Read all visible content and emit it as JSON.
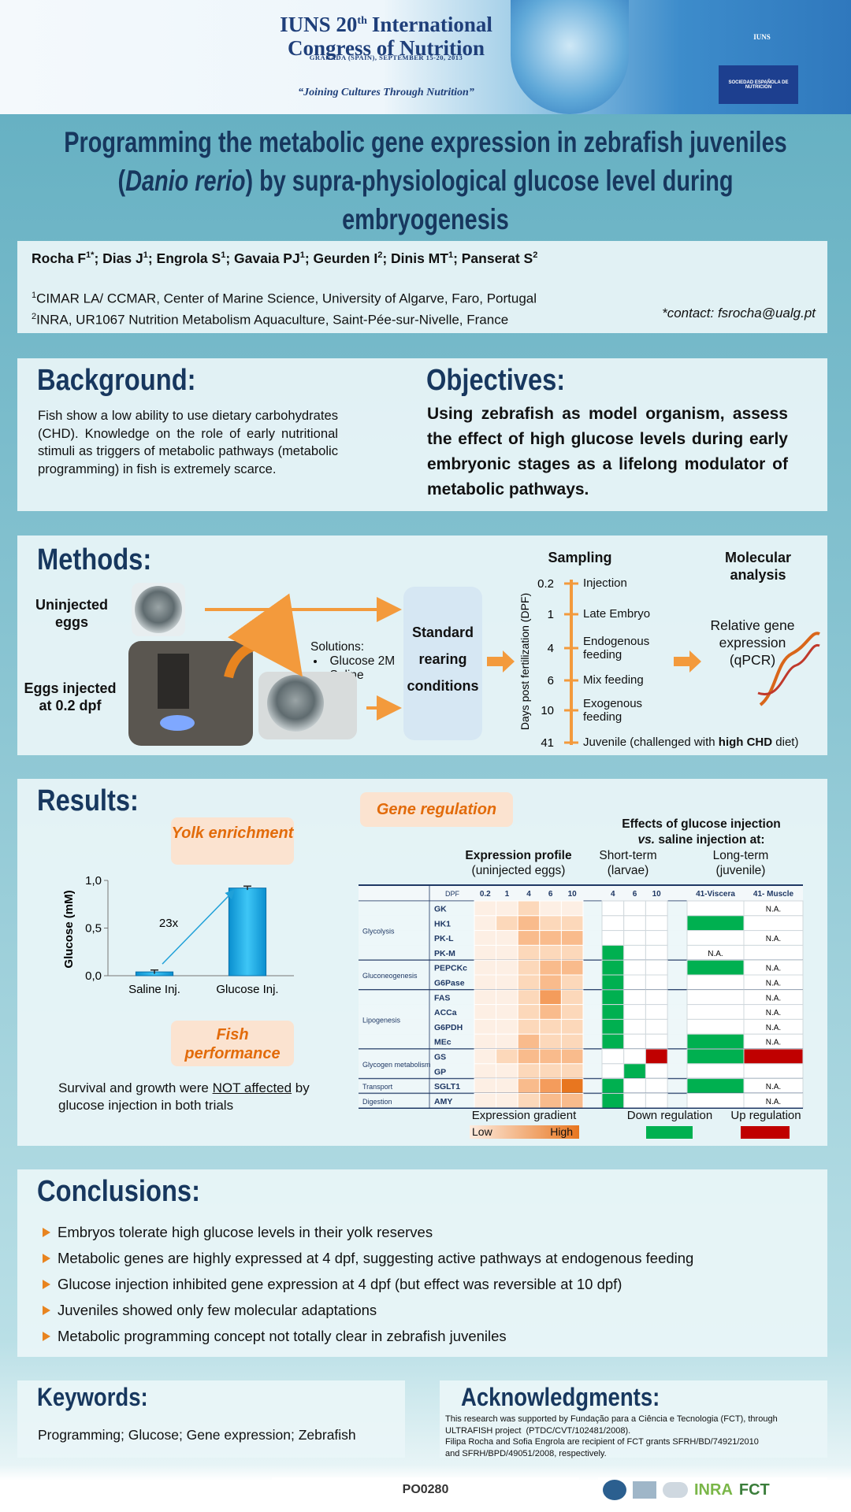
{
  "header": {
    "name_pre": "IUNS 20",
    "name_sup": "th",
    "name_post": "International",
    "name_line2": "Congress of Nutrition",
    "place": "GRANADA (SPAIN), SEPTEMBER 15-20, 2013",
    "motto": "“Joining Cultures Through Nutrition”",
    "logo": "IUNS",
    "sponsor": "SOCIEDAD ESPAÑOLA DE NUTRICIÓN"
  },
  "title": {
    "before": "Programming the metabolic gene expression in zebrafish juveniles (",
    "italic": "Danio rerio",
    "after": ") by supra-physiological glucose level during embryogenesis"
  },
  "authors": [
    {
      "name": "Rocha F",
      "sup": "1*"
    },
    {
      "name": "; Dias J",
      "sup": "1"
    },
    {
      "name": "; Engrola S",
      "sup": "1"
    },
    {
      "name": "; Gavaia PJ",
      "sup": "1"
    },
    {
      "name": "; Geurden I",
      "sup": "2"
    },
    {
      "name": "; Dinis MT",
      "sup": "1"
    },
    {
      "name": "; Panserat S",
      "sup": "2"
    }
  ],
  "affiliations": [
    {
      "sup": "1",
      "text": "CIMAR LA/ CCMAR, Center of Marine Science, University of Algarve, Faro, Portugal"
    },
    {
      "sup": "2",
      "text": "INRA, UR1067 Nutrition Metabolism Aquaculture, Saint-Pée-sur-Nivelle, France"
    }
  ],
  "contact": "*contact: fsrocha@ualg.pt",
  "background": {
    "heading": "Background:",
    "text": "Fish show a low ability to use dietary carbohydrates (CHD). Knowledge on the role of early nutritional stimuli as triggers of metabolic pathways (metabolic programming) in fish is extremely scarce."
  },
  "objectives": {
    "heading": "Objectives:",
    "text": "Using zebrafish as model organism, assess the effect of high glucose levels during early embryonic stages as a lifelong modulator of metabolic pathways."
  },
  "methods": {
    "heading": "Methods:",
    "uninjected": "Uninjected eggs",
    "injected": "Eggs injected at 0.2 dpf",
    "solutions_label": "Solutions:",
    "solutions": [
      "Glucose 2M",
      "Saline"
    ],
    "rearing": "Standard rearing conditions",
    "sampling": "Sampling",
    "axis_label": "Days post fertilization (DPF)",
    "timeline": [
      {
        "dpf": 0.2,
        "event": "Injection"
      },
      {
        "dpf": 1,
        "event": "Late Embryo"
      },
      {
        "dpf": 4,
        "event": "Endogenous feeding"
      },
      {
        "dpf": 6,
        "event": "Mix feeding"
      },
      {
        "dpf": 10,
        "event": "Exogenous feeding"
      },
      {
        "dpf": 41,
        "event": "Juvenile (challenged with ",
        "bold": "high CHD",
        "after": " diet)"
      }
    ],
    "molecular": "Molecular analysis",
    "qpcr": "Relative gene expression (qPCR)"
  },
  "results": {
    "heading": "Results:",
    "yolk": "Yolk enrichment",
    "performance": "Fish performance",
    "survival": {
      "before": "Survival and growth were ",
      "underlined": "NOT affected",
      "after": " by glucose injection in both trials"
    },
    "yolk_chart": {
      "type": "bar",
      "y_label": "Glucose (mM)",
      "categories": [
        "Saline Inj.",
        "Glucose Inj."
      ],
      "values": [
        0.04,
        0.92
      ],
      "errors": [
        0.02,
        0.02
      ],
      "color": "#1fb4ee",
      "ylim": [
        0,
        1
      ],
      "yticks": [
        {
          "value": 0,
          "label": "0,0"
        },
        {
          "value": 0.5,
          "label": "0,5"
        },
        {
          "value": 1,
          "label": "1,0"
        }
      ],
      "annotation": "23x"
    },
    "gene_regulation": {
      "heading": "Gene regulation",
      "effects_line1": "Effects of glucose injection",
      "effects_vs": "vs.",
      "effects_rest": " saline injection at:",
      "profile": "Expression profile",
      "profile_sub": "(uninjected eggs)",
      "short": "Short-term",
      "short_sub": "(larvae)",
      "long": "Long-term",
      "long_sub": "(juvenile)",
      "dpf_label": "DPF",
      "dpf": [
        0.2,
        1,
        4,
        6,
        10
      ],
      "short_dpf": [
        4,
        6,
        10
      ],
      "long_cols": [
        "41-Viscera",
        "41- Muscle"
      ],
      "groups": [
        {
          "name": "Glycolysis",
          "genes": [
            {
              "gene": "GK",
              "expression": [
                1,
                1,
                2,
                1,
                1
              ],
              "short_term": [
                0,
                0,
                0
              ],
              "long_term": [
                0,
                "N.A."
              ]
            },
            {
              "gene": "HK1",
              "expression": [
                1,
                2,
                3,
                2,
                2
              ],
              "short_term": [
                0,
                0,
                0
              ],
              "long_term": [
                -1,
                0
              ]
            },
            {
              "gene": "PK-L",
              "expression": [
                1,
                1,
                3,
                3,
                3
              ],
              "short_term": [
                0,
                0,
                0
              ],
              "long_term": [
                0,
                "N.A."
              ]
            },
            {
              "gene": "PK-M",
              "expression": [
                1,
                1,
                2,
                2,
                2
              ],
              "short_term": [
                -1,
                0,
                0
              ],
              "long_term": [
                "N.A.",
                0
              ]
            }
          ]
        },
        {
          "name": "Gluconeogenesis",
          "genes": [
            {
              "gene": "PEPCKc",
              "expression": [
                1,
                1,
                2,
                3,
                3
              ],
              "short_term": [
                -1,
                0,
                0
              ],
              "long_term": [
                -1,
                "N.A."
              ]
            },
            {
              "gene": "G6Pase",
              "expression": [
                1,
                1,
                2,
                3,
                2
              ],
              "short_term": [
                -1,
                0,
                0
              ],
              "long_term": [
                0,
                "N.A."
              ]
            }
          ]
        },
        {
          "name": "Lipogenesis",
          "genes": [
            {
              "gene": "FAS",
              "expression": [
                1,
                1,
                2,
                4,
                2
              ],
              "short_term": [
                -1,
                0,
                0
              ],
              "long_term": [
                0,
                "N.A."
              ]
            },
            {
              "gene": "ACCa",
              "expression": [
                1,
                1,
                2,
                3,
                2
              ],
              "short_term": [
                -1,
                0,
                0
              ],
              "long_term": [
                0,
                "N.A."
              ]
            },
            {
              "gene": "G6PDH",
              "expression": [
                1,
                1,
                2,
                2,
                2
              ],
              "short_term": [
                -1,
                0,
                0
              ],
              "long_term": [
                0,
                "N.A."
              ]
            },
            {
              "gene": "MEc",
              "expression": [
                1,
                1,
                3,
                2,
                2
              ],
              "short_term": [
                -1,
                0,
                0
              ],
              "long_term": [
                -1,
                "N.A."
              ]
            }
          ]
        },
        {
          "name": "Glycogen metabolism",
          "genes": [
            {
              "gene": "GS",
              "expression": [
                1,
                2,
                3,
                3,
                3
              ],
              "short_term": [
                0,
                0,
                1
              ],
              "long_term": [
                -1,
                1
              ]
            },
            {
              "gene": "GP",
              "expression": [
                1,
                1,
                2,
                2,
                2
              ],
              "short_term": [
                0,
                -1,
                0
              ],
              "long_term": [
                0,
                0
              ]
            }
          ]
        },
        {
          "name": "Transport",
          "genes": [
            {
              "gene": "SGLT1",
              "expression": [
                1,
                1,
                3,
                4,
                5
              ],
              "short_term": [
                -1,
                0,
                0
              ],
              "long_term": [
                -1,
                "N.A."
              ]
            }
          ]
        },
        {
          "name": "Digestion",
          "genes": [
            {
              "gene": "AMY",
              "expression": [
                1,
                1,
                2,
                3,
                3
              ],
              "short_term": [
                -1,
                0,
                0
              ],
              "long_term": [
                0,
                "N.A."
              ]
            }
          ]
        }
      ],
      "legend_gradient": "Expression gradient",
      "legend_low": "Low",
      "legend_high": "High",
      "legend_down": "Down regulation",
      "legend_up": "Up regulation"
    }
  },
  "conclusions": {
    "heading": "Conclusions:",
    "items": [
      "Embryos tolerate high glucose levels in their yolk reserves",
      "Metabolic genes are highly expressed at 4 dpf, suggesting active pathways at endogenous feeding",
      "Glucose injection inhibited gene expression at 4 dpf (but effect was reversible at 10 dpf)",
      "Juveniles showed only few molecular adaptations",
      "Metabolic programming concept not totally clear in zebrafish juveniles"
    ]
  },
  "keywords": {
    "heading": "Keywords:",
    "text": "Programming; Glucose; Gene expression; Zebrafish"
  },
  "acknowledgments": {
    "heading": "Acknowledgments:",
    "lines": [
      "This research was supported by Fundação para a Ciência e Tecnologia (FCT), through",
      "ULTRAFISH project  (PTDC/CVT/102481/2008).",
      "Filipa Rocha and Sofia Engrola are recipient of FCT grants SFRH/BD/74921/2010",
      "and SFRH/BPD/49051/2008, respectively."
    ]
  },
  "poster_id": "PO0280",
  "logos": [
    "INRA",
    "FCT"
  ]
}
